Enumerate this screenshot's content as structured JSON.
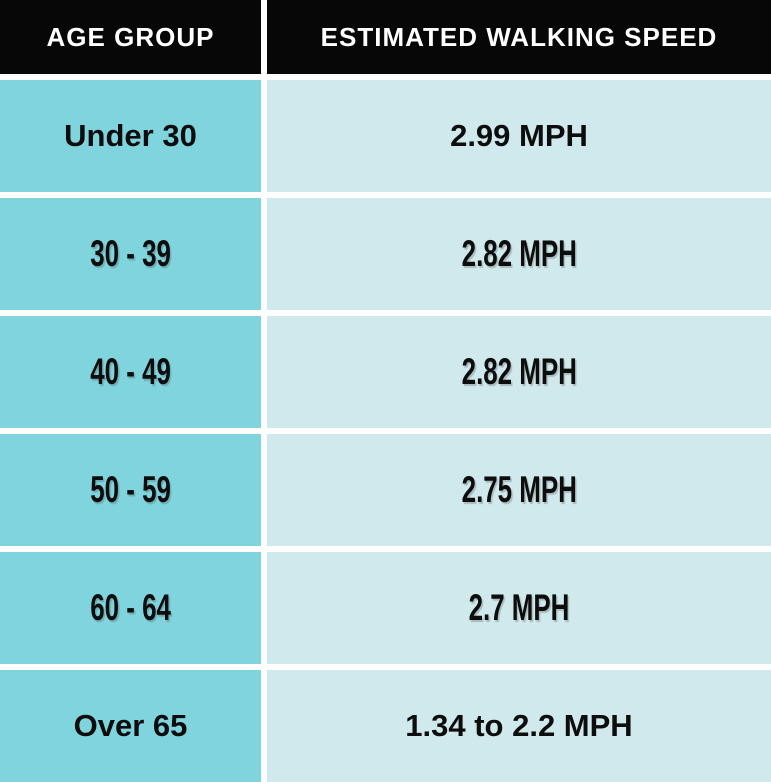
{
  "table": {
    "headers": [
      "AGE GROUP",
      "ESTIMATED WALKING SPEED"
    ],
    "rows": [
      {
        "age_group": "Under 30",
        "speed": "2.99 MPH"
      },
      {
        "age_group": "30 - 39",
        "speed": "2.82 MPH"
      },
      {
        "age_group": "40 - 49",
        "speed": "2.82 MPH"
      },
      {
        "age_group": "50 - 59",
        "speed": "2.75 MPH"
      },
      {
        "age_group": "60 - 64",
        "speed": "2.7 MPH"
      },
      {
        "age_group": "Over 65",
        "speed": "1.34 to 2.2 MPH"
      }
    ]
  },
  "chart_data": {
    "type": "table",
    "columns": [
      "AGE GROUP",
      "ESTIMATED WALKING SPEED"
    ],
    "rows": [
      [
        "Under 30",
        "2.99 MPH"
      ],
      [
        "30 - 39",
        "2.82 MPH"
      ],
      [
        "40 - 49",
        "2.82 MPH"
      ],
      [
        "50 - 59",
        "2.75 MPH"
      ],
      [
        "60 - 64",
        "2.7 MPH"
      ],
      [
        "Over 65",
        "1.34 to 2.2 MPH"
      ]
    ],
    "values_mph_min_max": [
      [
        2.99,
        2.99
      ],
      [
        2.82,
        2.82
      ],
      [
        2.82,
        2.82
      ],
      [
        2.75,
        2.75
      ],
      [
        2.7,
        2.7
      ],
      [
        1.34,
        2.2
      ]
    ],
    "layout": {
      "header_row": true,
      "grid": "white 6px separators",
      "legend_position": "none"
    }
  },
  "colors": {
    "header_bg": "#070707",
    "header_text": "#ffffff",
    "age_col_bg": "#7fd4dd",
    "speed_col_bg": "#d0e9ed",
    "grid_line": "#ffffff",
    "cell_text": "#0d0d0d"
  }
}
